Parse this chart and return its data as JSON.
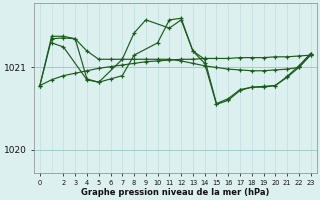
{
  "bg_color": "#ddf0f0",
  "line_color": "#1a5c1a",
  "xlabel": "Graphe pression niveau de la mer (hPa)",
  "ytick_labels": [
    "1020",
    "1021"
  ],
  "ytick_vals": [
    1020.0,
    1021.0
  ],
  "ylim": [
    1019.72,
    1021.78
  ],
  "xlim": [
    -0.5,
    23.5
  ],
  "xtick_positions": [
    0,
    2,
    3,
    4,
    5,
    6,
    7,
    8,
    9,
    10,
    11,
    12,
    13,
    14,
    15,
    16,
    17,
    18,
    19,
    20,
    21,
    22,
    23
  ],
  "xtick_labels": [
    "0",
    "2",
    "3",
    "4",
    "5",
    "6",
    "7",
    "8",
    "9",
    "10",
    "11",
    "12",
    "13",
    "14",
    "15",
    "16",
    "17",
    "18",
    "19",
    "20",
    "21",
    "22",
    "23"
  ],
  "series": [
    {
      "x": [
        0,
        1,
        2,
        3,
        4,
        5,
        6,
        7,
        8,
        9,
        10,
        11,
        12,
        13,
        14,
        15,
        16,
        17,
        18,
        19,
        20,
        21,
        22,
        23
      ],
      "y": [
        1020.78,
        1020.85,
        1020.9,
        1020.93,
        1020.96,
        1020.99,
        1021.01,
        1021.03,
        1021.05,
        1021.07,
        1021.08,
        1021.09,
        1021.1,
        1021.1,
        1021.11,
        1021.11,
        1021.11,
        1021.12,
        1021.12,
        1021.12,
        1021.13,
        1021.13,
        1021.14,
        1021.15
      ]
    },
    {
      "x": [
        0,
        1,
        2,
        3,
        4,
        5,
        6,
        7,
        8,
        9,
        10,
        11,
        12,
        13,
        14,
        15,
        16,
        17,
        18,
        19,
        20,
        21,
        22,
        23
      ],
      "y": [
        1020.78,
        1021.35,
        1021.36,
        1021.35,
        1021.2,
        1021.1,
        1021.1,
        1021.1,
        1021.1,
        1021.1,
        1021.1,
        1021.1,
        1021.08,
        1021.05,
        1021.02,
        1021.0,
        1020.98,
        1020.97,
        1020.96,
        1020.96,
        1020.97,
        1020.98,
        1021.0,
        1021.15
      ]
    },
    {
      "x": [
        1,
        2,
        4,
        5,
        7,
        8,
        9,
        11,
        12,
        13,
        14,
        15,
        16,
        17,
        18,
        19,
        20,
        21,
        22,
        23
      ],
      "y": [
        1021.3,
        1021.25,
        1020.85,
        1020.82,
        1021.1,
        1021.42,
        1021.58,
        1021.48,
        1021.58,
        1021.2,
        1021.05,
        1020.55,
        1020.6,
        1020.72,
        1020.76,
        1020.76,
        1020.78,
        1020.88,
        1021.0,
        1021.17
      ]
    },
    {
      "x": [
        0,
        1,
        2,
        3,
        4,
        5,
        6,
        7,
        8,
        10,
        11,
        12,
        13,
        14,
        15,
        16,
        17,
        18,
        19,
        20,
        21,
        22,
        23
      ],
      "y": [
        1020.78,
        1021.38,
        1021.38,
        1021.35,
        1020.86,
        1020.82,
        1020.86,
        1020.9,
        1021.15,
        1021.3,
        1021.58,
        1021.6,
        1021.2,
        1021.1,
        1020.56,
        1020.62,
        1020.73,
        1020.76,
        1020.77,
        1020.78,
        1020.89,
        1021.02,
        1021.17
      ]
    }
  ]
}
